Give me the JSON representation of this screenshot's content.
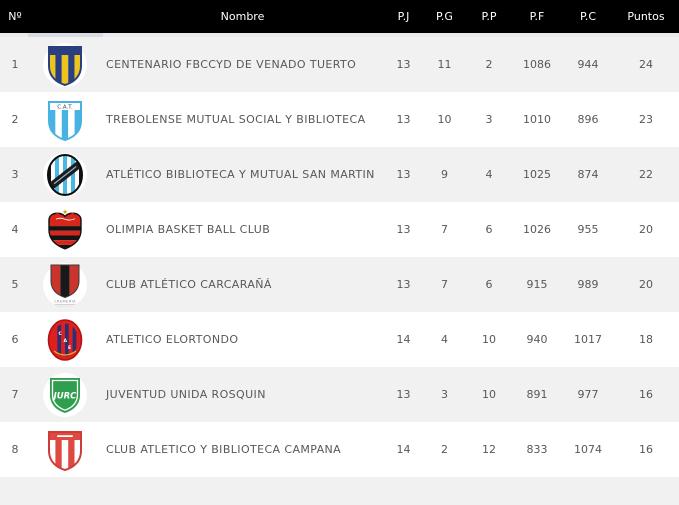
{
  "colors": {
    "header_bg": "#000000",
    "header_text": "#ffffff",
    "row_alt": "#f1f1f2",
    "row_text": "#57585c",
    "header_strip": "#e9ebed",
    "header_strip_artifact": "#d9dde3"
  },
  "header": {
    "rank": "Nº",
    "name": "Nombre",
    "pj": "P.J",
    "pg": "P.G",
    "pp": "P.P",
    "pf": "P.F",
    "pc": "P.C",
    "pts": "Puntos"
  },
  "rows": [
    {
      "rank": "1",
      "name": "CENTENARIO FBCCYD DE VENADO TUERTO",
      "pj": "13",
      "pg": "11",
      "pp": "2",
      "pf": "1086",
      "pc": "944",
      "pts": "24",
      "logo": {
        "icon": "centenario-crest-icon",
        "kind": "shield-vstripes",
        "stripe1": "#edc41d",
        "stripe2": "#2b3f7e",
        "chief": "#2b3f7e",
        "border": "#2b3f7e"
      }
    },
    {
      "rank": "2",
      "name": "TREBOLENSE MUTUAL SOCIAL Y BIBLIOTECA",
      "pj": "13",
      "pg": "10",
      "pp": "3",
      "pf": "1010",
      "pc": "896",
      "pts": "23",
      "logo": {
        "icon": "trebolense-crest-icon",
        "kind": "shield-vstripes",
        "stripe1": "#48b2e2",
        "stripe2": "#ffffff",
        "chief": "#ffffff",
        "chief_text": "C.A.T.",
        "chief_text_color": "#39424d",
        "border": "#48b2e2"
      }
    },
    {
      "rank": "3",
      "name": "ATLÉTICO BIBLIOTECA Y MUTUAL SAN MARTIN",
      "pj": "13",
      "pg": "9",
      "pp": "4",
      "pf": "1025",
      "pc": "874",
      "pts": "22",
      "logo": {
        "icon": "san-martin-crest-icon",
        "kind": "oval-sash",
        "bg": "#141414",
        "stripe1": "#ffffff",
        "stripe2": "#49b8e6",
        "sash": "#1d1d1d"
      }
    },
    {
      "rank": "4",
      "name": "OLIMPIA BASKET BALL CLUB",
      "pj": "13",
      "pg": "7",
      "pp": "6",
      "pf": "1026",
      "pc": "955",
      "pts": "20",
      "logo": {
        "icon": "olimpia-crest-icon",
        "kind": "heart-hstripes",
        "stripe1": "#d8261c",
        "stripe2": "#141414",
        "band": "#d8261c",
        "star": "#d79f00"
      }
    },
    {
      "rank": "5",
      "name": "CLUB ATLÉTICO CARCARAÑÁ",
      "pj": "13",
      "pg": "7",
      "pp": "6",
      "pf": "915",
      "pc": "989",
      "pts": "20",
      "logo": {
        "icon": "carcarana-crest-icon",
        "kind": "shield-3band",
        "left": "#c9352c",
        "mid": "#191919",
        "right": "#c9352c",
        "caption": "CREMERIA"
      }
    },
    {
      "rank": "6",
      "name": "ATLETICO ELORTONDO",
      "pj": "14",
      "pg": "4",
      "pp": "10",
      "pf": "940",
      "pc": "1017",
      "pts": "18",
      "logo": {
        "icon": "elortondo-crest-icon",
        "kind": "oval-ring",
        "bg": "#df1f1f",
        "stripe": "#2a3173",
        "ring": "#b01212",
        "gold": "#e5b31c",
        "letters": "CAE"
      }
    },
    {
      "rank": "7",
      "name": "JUVENTUD UNIDA ROSQUIN",
      "pj": "13",
      "pg": "3",
      "pp": "10",
      "pf": "891",
      "pc": "977",
      "pts": "16",
      "logo": {
        "icon": "juventud-unida-crest-icon",
        "kind": "shield-plain",
        "bg": "#2f9e4e",
        "text": "JURC"
      }
    },
    {
      "rank": "8",
      "name": "CLUB ATLETICO Y BIBLIOTECA CAMPANA",
      "pj": "14",
      "pg": "2",
      "pp": "12",
      "pf": "833",
      "pc": "1074",
      "pts": "16",
      "logo": {
        "icon": "campana-crest-icon",
        "kind": "shield-vstripes",
        "stripe1": "#ffffff",
        "stripe2": "#de4a42",
        "chief": "#de4a42",
        "chief_marks": "#ffffff",
        "border": "#cf3b35"
      }
    }
  ]
}
